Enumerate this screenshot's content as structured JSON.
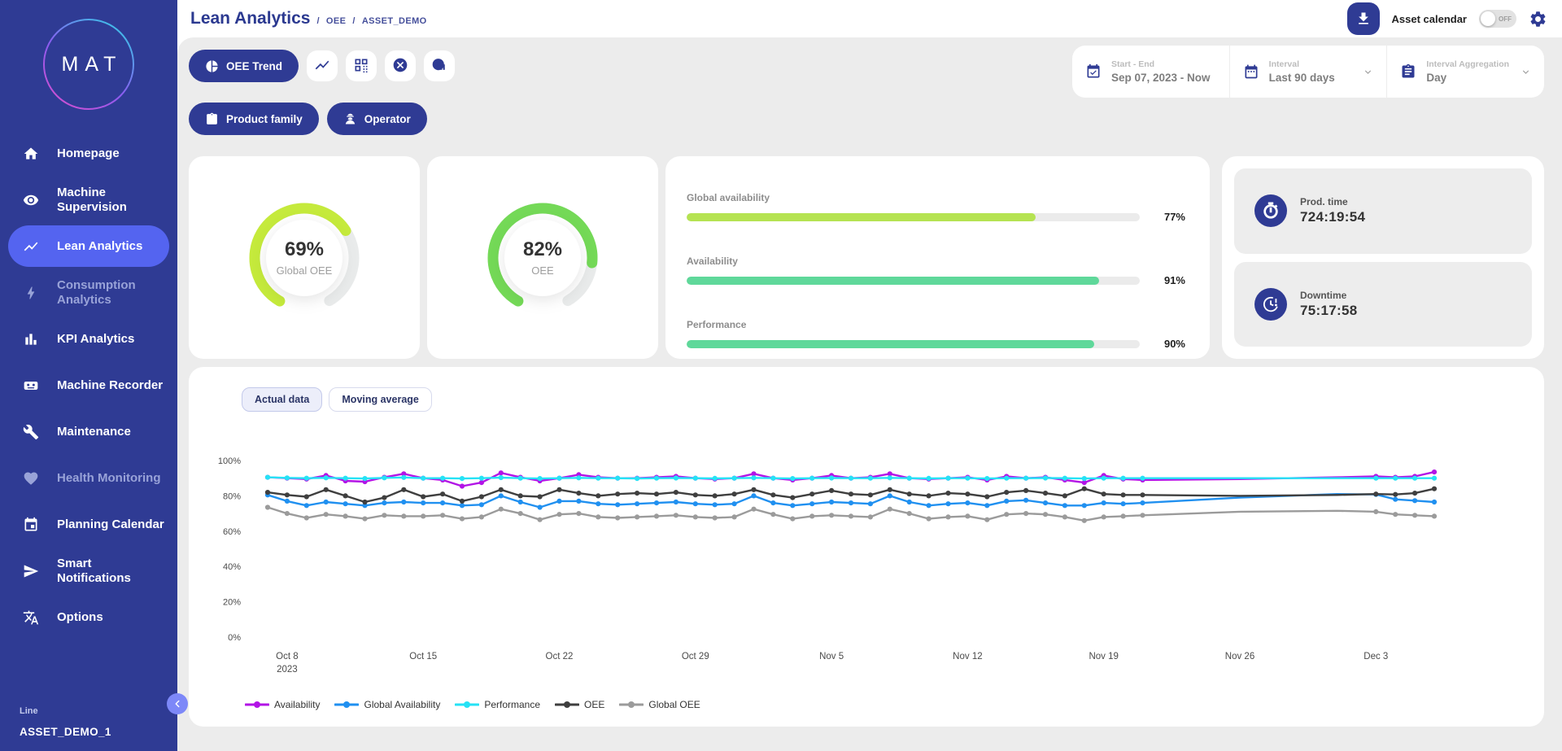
{
  "sidebar": {
    "logo_text": "MAT",
    "items": [
      {
        "label": "Homepage",
        "icon": "home",
        "active": false,
        "dimmed": false
      },
      {
        "label": "Machine Supervision",
        "icon": "eye",
        "active": false,
        "dimmed": false
      },
      {
        "label": "Lean Analytics",
        "icon": "trend",
        "active": true,
        "dimmed": false
      },
      {
        "label": "Consumption Analytics",
        "icon": "bolt",
        "active": false,
        "dimmed": true
      },
      {
        "label": "KPI Analytics",
        "icon": "bar-chart",
        "active": false,
        "dimmed": false
      },
      {
        "label": "Machine Recorder",
        "icon": "recorder",
        "active": false,
        "dimmed": false
      },
      {
        "label": "Maintenance",
        "icon": "wrench",
        "active": false,
        "dimmed": false
      },
      {
        "label": "Health Monitoring",
        "icon": "heart-pulse",
        "active": false,
        "dimmed": true
      },
      {
        "label": "Planning Calendar",
        "icon": "calendar",
        "active": false,
        "dimmed": false
      },
      {
        "label": "Smart Notifications",
        "icon": "send",
        "active": false,
        "dimmed": false
      },
      {
        "label": "Options",
        "icon": "translate",
        "active": false,
        "dimmed": false
      }
    ],
    "footer": {
      "line_label": "Line",
      "asset_name": "ASSET_DEMO_1"
    }
  },
  "header": {
    "title": "Lean Analytics",
    "breadcrumbs": [
      "OEE",
      "ASSET_DEMO"
    ],
    "asset_calendar_label": "Asset calendar",
    "toggle_state": "OFF"
  },
  "toolbar": {
    "primary_button": "OEE Trend",
    "view_buttons": [
      {
        "icon": "line-chart"
      },
      {
        "icon": "qr-grid"
      },
      {
        "icon": "cancel"
      },
      {
        "icon": "no-data"
      }
    ],
    "filters": [
      "Product family",
      "Operator"
    ],
    "date_range": {
      "label": "Start - End",
      "value": "Sep 07, 2023 - Now"
    },
    "interval": {
      "label": "Interval",
      "value": "Last 90 days"
    },
    "aggregation": {
      "label": "Interval Aggregation",
      "value": "Day"
    }
  },
  "kpis": {
    "gauges": [
      {
        "value": "69%",
        "pct": 69,
        "label": "Global OEE",
        "color": "#c5ea3c"
      },
      {
        "value": "82%",
        "pct": 82,
        "label": "OEE",
        "color": "#74d957"
      }
    ],
    "bars": [
      {
        "label": "Global availability",
        "value": "77%",
        "pct": 77,
        "color": "#b5e352"
      },
      {
        "label": "Availability",
        "value": "91%",
        "pct": 91,
        "color": "#5fd89a"
      },
      {
        "label": "Performance",
        "value": "90%",
        "pct": 90,
        "color": "#5fd89a"
      }
    ],
    "times": [
      {
        "label": "Prod. time",
        "value": "724:19:54",
        "icon": "stopwatch"
      },
      {
        "label": "Downtime",
        "value": "75:17:58",
        "icon": "clock-alert"
      }
    ]
  },
  "chart": {
    "tabs": [
      {
        "label": "Actual data",
        "active": true
      },
      {
        "label": "Moving average",
        "active": false
      }
    ]
  },
  "chart_data": {
    "type": "line",
    "title": "",
    "xlabel": "",
    "ylabel": "",
    "ylim": [
      0,
      100
    ],
    "grid": false,
    "legend_position": "bottom",
    "y_ticks": [
      0,
      20,
      40,
      60,
      80,
      100
    ],
    "y_tick_suffix": "%",
    "x_unit": "days since Oct 7, 2023",
    "x_ticks": [
      {
        "day": 1,
        "label": "Oct 8",
        "sub": "2023"
      },
      {
        "day": 8,
        "label": "Oct 15"
      },
      {
        "day": 15,
        "label": "Oct 22"
      },
      {
        "day": 22,
        "label": "Oct 29"
      },
      {
        "day": 29,
        "label": "Nov 5"
      },
      {
        "day": 36,
        "label": "Nov 12"
      },
      {
        "day": 43,
        "label": "Nov 19"
      },
      {
        "day": 50,
        "label": "Nov 26"
      },
      {
        "day": 57,
        "label": "Dec 3"
      }
    ],
    "x": [
      0,
      1,
      2,
      3,
      4,
      5,
      6,
      7,
      8,
      9,
      10,
      11,
      12,
      13,
      14,
      15,
      16,
      17,
      18,
      19,
      20,
      21,
      22,
      23,
      24,
      25,
      26,
      27,
      28,
      29,
      30,
      31,
      32,
      33,
      34,
      35,
      36,
      37,
      38,
      39,
      40,
      41,
      42,
      43,
      44,
      45,
      50,
      55,
      57,
      58,
      59,
      60
    ],
    "no_marker_days": [
      50,
      55
    ],
    "series": [
      {
        "name": "Availability",
        "color": "#b214e6",
        "values": [
          90.5,
          90,
          89.5,
          91.5,
          88.5,
          88,
          90.5,
          92.5,
          90,
          89,
          85.5,
          87.5,
          93,
          90.5,
          88.5,
          90,
          92,
          90.5,
          90,
          90,
          90.5,
          91,
          90,
          89.5,
          90,
          92.5,
          90,
          89,
          90,
          91.5,
          90,
          90.5,
          92.5,
          90,
          89.5,
          90,
          90.5,
          89,
          91,
          90,
          90.5,
          89,
          87.5,
          91.5,
          89.5,
          89,
          89.5,
          90.5,
          91,
          90.5,
          91,
          93.5
        ]
      },
      {
        "name": "Global Availability",
        "color": "#2090f0",
        "values": [
          80.5,
          77,
          74.5,
          76.5,
          75.5,
          74.5,
          76,
          76.5,
          76,
          76,
          74.5,
          75,
          80,
          76.5,
          73.5,
          77,
          77,
          75.5,
          75,
          75.5,
          76,
          76.5,
          75.5,
          75,
          75.5,
          80,
          76,
          74.5,
          75.5,
          76.5,
          76,
          75.5,
          80,
          76.5,
          74.5,
          75.5,
          76,
          74.5,
          77,
          77.5,
          76,
          74.5,
          74.5,
          76,
          75.5,
          76,
          79,
          81,
          80.8,
          78,
          77.3,
          76.5
        ]
      },
      {
        "name": "Performance",
        "color": "#26e2f5",
        "values": [
          90.5,
          90.2,
          90,
          90.2,
          90,
          89.8,
          90.2,
          90.4,
          90,
          90,
          89.8,
          90,
          90.3,
          90,
          89.8,
          90,
          90.2,
          90,
          90,
          89.8,
          90,
          90.1,
          90,
          89.9,
          90,
          90.2,
          90,
          89.8,
          90,
          90.1,
          90,
          90,
          90.2,
          90,
          89.9,
          90,
          90,
          89.8,
          90,
          90,
          90.1,
          90,
          89.8,
          90,
          90,
          90,
          90,
          90,
          90,
          90,
          90,
          90
        ]
      },
      {
        "name": "OEE",
        "color": "#3f3f3f",
        "values": [
          82,
          80.5,
          79.5,
          83.5,
          80,
          76.5,
          79,
          83.5,
          79.5,
          81,
          77,
          79.5,
          83.5,
          80,
          79.5,
          83.5,
          81.5,
          80,
          81,
          81.5,
          81,
          82,
          80.5,
          80,
          81,
          83.5,
          80.5,
          79,
          81,
          83,
          81,
          80.5,
          83.5,
          81,
          80,
          81.5,
          81,
          79.5,
          82,
          83,
          81.5,
          80,
          84,
          81,
          80.5,
          80.5,
          80,
          80.5,
          81,
          80.8,
          81.5,
          84
        ]
      },
      {
        "name": "Global OEE",
        "color": "#9b9b9b",
        "values": [
          73.5,
          70,
          67.5,
          69.5,
          68.5,
          67,
          69,
          68.5,
          68.5,
          69,
          67,
          68,
          72.5,
          70,
          66.5,
          69.5,
          70,
          68,
          67.5,
          68,
          68.5,
          69,
          68,
          67.5,
          68,
          72.5,
          69.5,
          67,
          68.5,
          69,
          68.5,
          68,
          72.5,
          70,
          67,
          68,
          68.5,
          66.5,
          69.5,
          70,
          69.5,
          68,
          66,
          68,
          68.5,
          69,
          71,
          71.5,
          71,
          69.5,
          69,
          68.5
        ]
      }
    ]
  }
}
